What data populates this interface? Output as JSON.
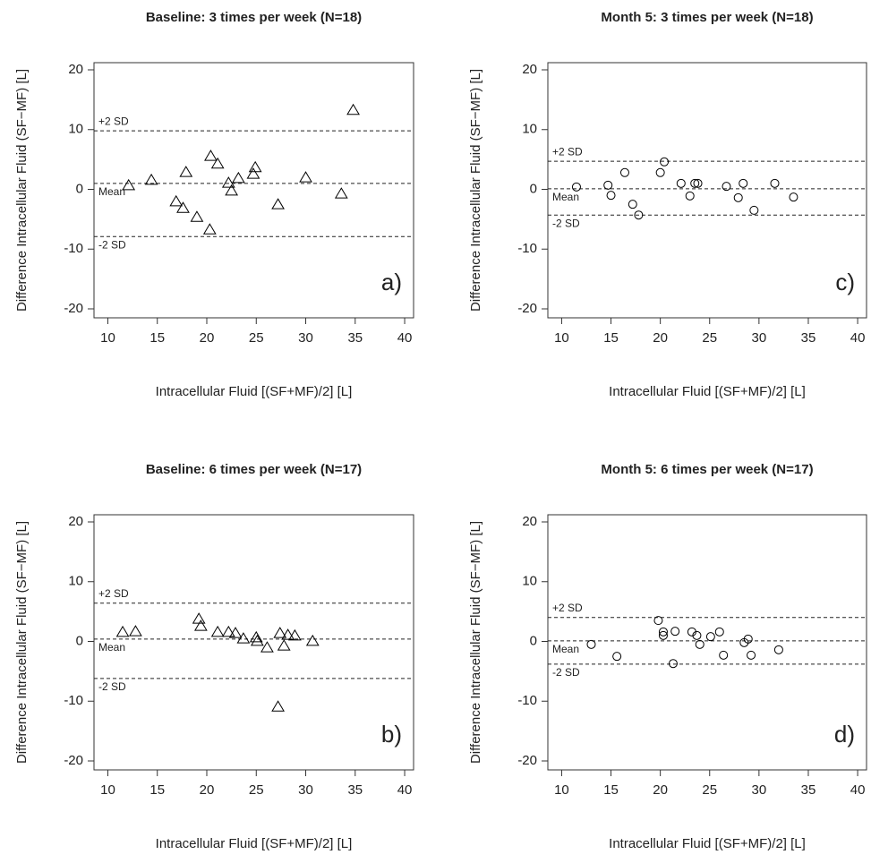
{
  "chart_data": [
    {
      "type": "scatter",
      "title": "Baseline: 3 times per week (N=18)",
      "x_label": "Intracellular Fluid [(SF+MF)/2] [L]",
      "y_label": "Difference Intracellular Fluid (SF−MF) [L]",
      "panel_label": "a)",
      "marker": "triangle",
      "color": "#000000",
      "x": [
        12.1,
        14.4,
        16.9,
        17.6,
        17.9,
        19.0,
        20.3,
        20.4,
        21.1,
        22.2,
        22.5,
        23.2,
        24.7,
        24.9,
        27.2,
        30.0,
        33.6,
        34.8
      ],
      "values": [
        0.7,
        1.6,
        -2.0,
        -3.1,
        2.9,
        -4.6,
        -6.7,
        5.6,
        4.3,
        1.1,
        -0.2,
        1.9,
        2.6,
        3.7,
        -2.5,
        2.0,
        -0.7,
        13.3
      ],
      "lines": [
        {
          "label": "+2 SD",
          "value": 9.8
        },
        {
          "label": "Mean",
          "value": 1.0
        },
        {
          "label": "-2 SD",
          "value": -7.9
        }
      ],
      "xlim": [
        8.6,
        40.9
      ],
      "ylim": [
        -21.5,
        21.2
      ],
      "xticks": [
        10,
        15,
        20,
        25,
        30,
        35,
        40
      ],
      "yticks": [
        -20,
        -10,
        0,
        10,
        20
      ]
    },
    {
      "type": "scatter",
      "title": "Baseline: 6 times per week (N=17)",
      "x_label": "Intracellular Fluid [(SF+MF)/2] [L]",
      "y_label": "Difference Intracellular Fluid (SF−MF) [L]",
      "panel_label": "b)",
      "marker": "triangle",
      "color": "#000000",
      "x": [
        11.5,
        12.8,
        19.2,
        19.4,
        21.1,
        22.2,
        22.9,
        23.7,
        25.0,
        25.1,
        26.1,
        27.4,
        27.8,
        28.2,
        28.9,
        30.7,
        27.2
      ],
      "values": [
        1.6,
        1.7,
        3.8,
        2.6,
        1.6,
        1.6,
        1.4,
        0.5,
        0.7,
        0.1,
        -1.0,
        1.4,
        -0.7,
        1.1,
        1.0,
        0.1,
        -10.9
      ],
      "lines": [
        {
          "label": "+2 SD",
          "value": 6.4
        },
        {
          "label": "Mean",
          "value": 0.4
        },
        {
          "label": "-2 SD",
          "value": -6.2
        }
      ],
      "xlim": [
        8.6,
        40.9
      ],
      "ylim": [
        -21.5,
        21.2
      ],
      "xticks": [
        10,
        15,
        20,
        25,
        30,
        35,
        40
      ],
      "yticks": [
        -20,
        -10,
        0,
        10,
        20
      ]
    },
    {
      "type": "scatter",
      "title": "Month 5: 3 times per week (N=18)",
      "x_label": "Intracellular Fluid [(SF+MF)/2] [L]",
      "y_label": "Difference Intracellular Fluid (SF−MF) [L]",
      "panel_label": "c)",
      "marker": "circle",
      "color": "#000000",
      "x": [
        11.5,
        14.7,
        15.0,
        16.4,
        17.2,
        17.8,
        20.0,
        20.4,
        22.1,
        23.0,
        23.5,
        23.8,
        26.7,
        27.9,
        28.4,
        29.5,
        31.6,
        33.5
      ],
      "values": [
        0.4,
        0.7,
        -1.0,
        2.8,
        -2.5,
        -4.3,
        2.8,
        4.6,
        1.0,
        -1.1,
        1.0,
        1.0,
        0.5,
        -1.4,
        1.0,
        -3.5,
        1.0,
        -1.3
      ],
      "lines": [
        {
          "label": "+2 SD",
          "value": 4.7
        },
        {
          "label": "Mean",
          "value": 0.1
        },
        {
          "label": "-2 SD",
          "value": -4.3
        }
      ],
      "xlim": [
        8.6,
        40.9
      ],
      "ylim": [
        -21.5,
        21.2
      ],
      "xticks": [
        10,
        15,
        20,
        25,
        30,
        35,
        40
      ],
      "yticks": [
        -20,
        -10,
        0,
        10,
        20
      ]
    },
    {
      "type": "scatter",
      "title": "Month 5: 6 times per week (N=17)",
      "x_label": "Intracellular Fluid [(SF+MF)/2] [L]",
      "y_label": "Difference Intracellular Fluid (SF−MF) [L]",
      "panel_label": "d)",
      "marker": "circle",
      "color": "#000000",
      "x": [
        13.0,
        15.6,
        19.8,
        20.3,
        20.3,
        21.5,
        21.3,
        23.2,
        23.7,
        24.0,
        25.1,
        26.0,
        26.4,
        28.5,
        28.9,
        29.2,
        32.0
      ],
      "values": [
        -0.5,
        -2.5,
        3.5,
        1.6,
        1.0,
        1.7,
        -3.7,
        1.6,
        1.0,
        -0.5,
        0.8,
        1.6,
        -2.3,
        -0.2,
        0.4,
        -2.3,
        -1.4
      ],
      "lines": [
        {
          "label": "+2 SD",
          "value": 4.0
        },
        {
          "label": "Mean",
          "value": 0.1
        },
        {
          "label": "-2 SD",
          "value": -3.8
        }
      ],
      "xlim": [
        8.6,
        40.9
      ],
      "ylim": [
        -21.5,
        21.2
      ],
      "xticks": [
        10,
        15,
        20,
        25,
        30,
        35,
        40
      ],
      "yticks": [
        -20,
        -10,
        0,
        10,
        20
      ]
    }
  ]
}
